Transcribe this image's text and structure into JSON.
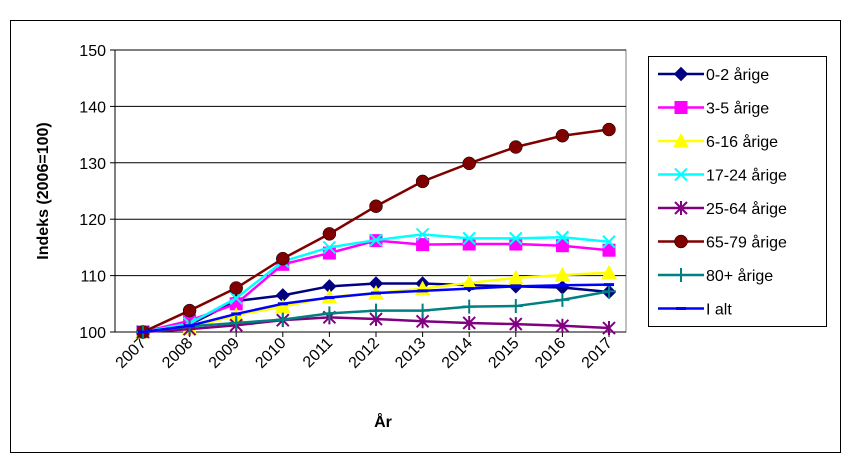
{
  "chart_data": {
    "type": "line",
    "title": "",
    "xlabel": "År",
    "ylabel": "Indeks (2006=100)",
    "ylim": [
      100,
      150
    ],
    "yticks": [
      100,
      110,
      120,
      130,
      140,
      150
    ],
    "grid": true,
    "legend_position": "right",
    "categories": [
      "2007",
      "2008",
      "2009",
      "2010",
      "2011",
      "2012",
      "2013",
      "2014",
      "2015",
      "2016",
      "2017"
    ],
    "series": [
      {
        "name": "0-2 årige",
        "color": "#000080",
        "marker": "diamond",
        "values": [
          100,
          101.3,
          105.5,
          106.5,
          108.1,
          108.6,
          108.6,
          108.3,
          108.1,
          107.9,
          107.1
        ]
      },
      {
        "name": "3-5 årige",
        "color": "#ff00ff",
        "marker": "square",
        "values": [
          100,
          102.0,
          105.0,
          112.0,
          114.0,
          116.2,
          115.5,
          115.6,
          115.6,
          115.3,
          114.5
        ]
      },
      {
        "name": "6-16 årige",
        "color": "#ffff00",
        "marker": "triangle",
        "values": [
          100,
          100.7,
          103.0,
          104.5,
          106.2,
          106.9,
          107.7,
          108.7,
          109.6,
          110.1,
          110.5
        ]
      },
      {
        "name": "17-24 årige",
        "color": "#00ffff",
        "marker": "x",
        "values": [
          100,
          101.5,
          106.0,
          112.5,
          115.0,
          116.3,
          117.3,
          116.6,
          116.6,
          116.8,
          116.0
        ]
      },
      {
        "name": "25-64 årige",
        "color": "#800080",
        "marker": "star",
        "values": [
          100,
          100.5,
          101.2,
          102.1,
          102.6,
          102.3,
          101.9,
          101.6,
          101.4,
          101.1,
          100.7
        ]
      },
      {
        "name": "65-79 årige",
        "color": "#800000",
        "marker": "circle",
        "values": [
          100,
          103.8,
          107.8,
          113.0,
          117.4,
          122.3,
          126.7,
          129.9,
          132.8,
          134.8,
          135.9
        ]
      },
      {
        "name": "80+ årige",
        "color": "#008080",
        "marker": "plus",
        "values": [
          100,
          101.0,
          101.6,
          102.2,
          103.3,
          103.8,
          103.8,
          104.5,
          104.6,
          105.7,
          107.2
        ]
      },
      {
        "name": "I alt",
        "color": "#0000ff",
        "marker": "dash",
        "values": [
          100,
          101.1,
          103.2,
          105.0,
          106.1,
          106.9,
          107.3,
          107.7,
          108.1,
          108.3,
          108.4
        ]
      }
    ]
  }
}
